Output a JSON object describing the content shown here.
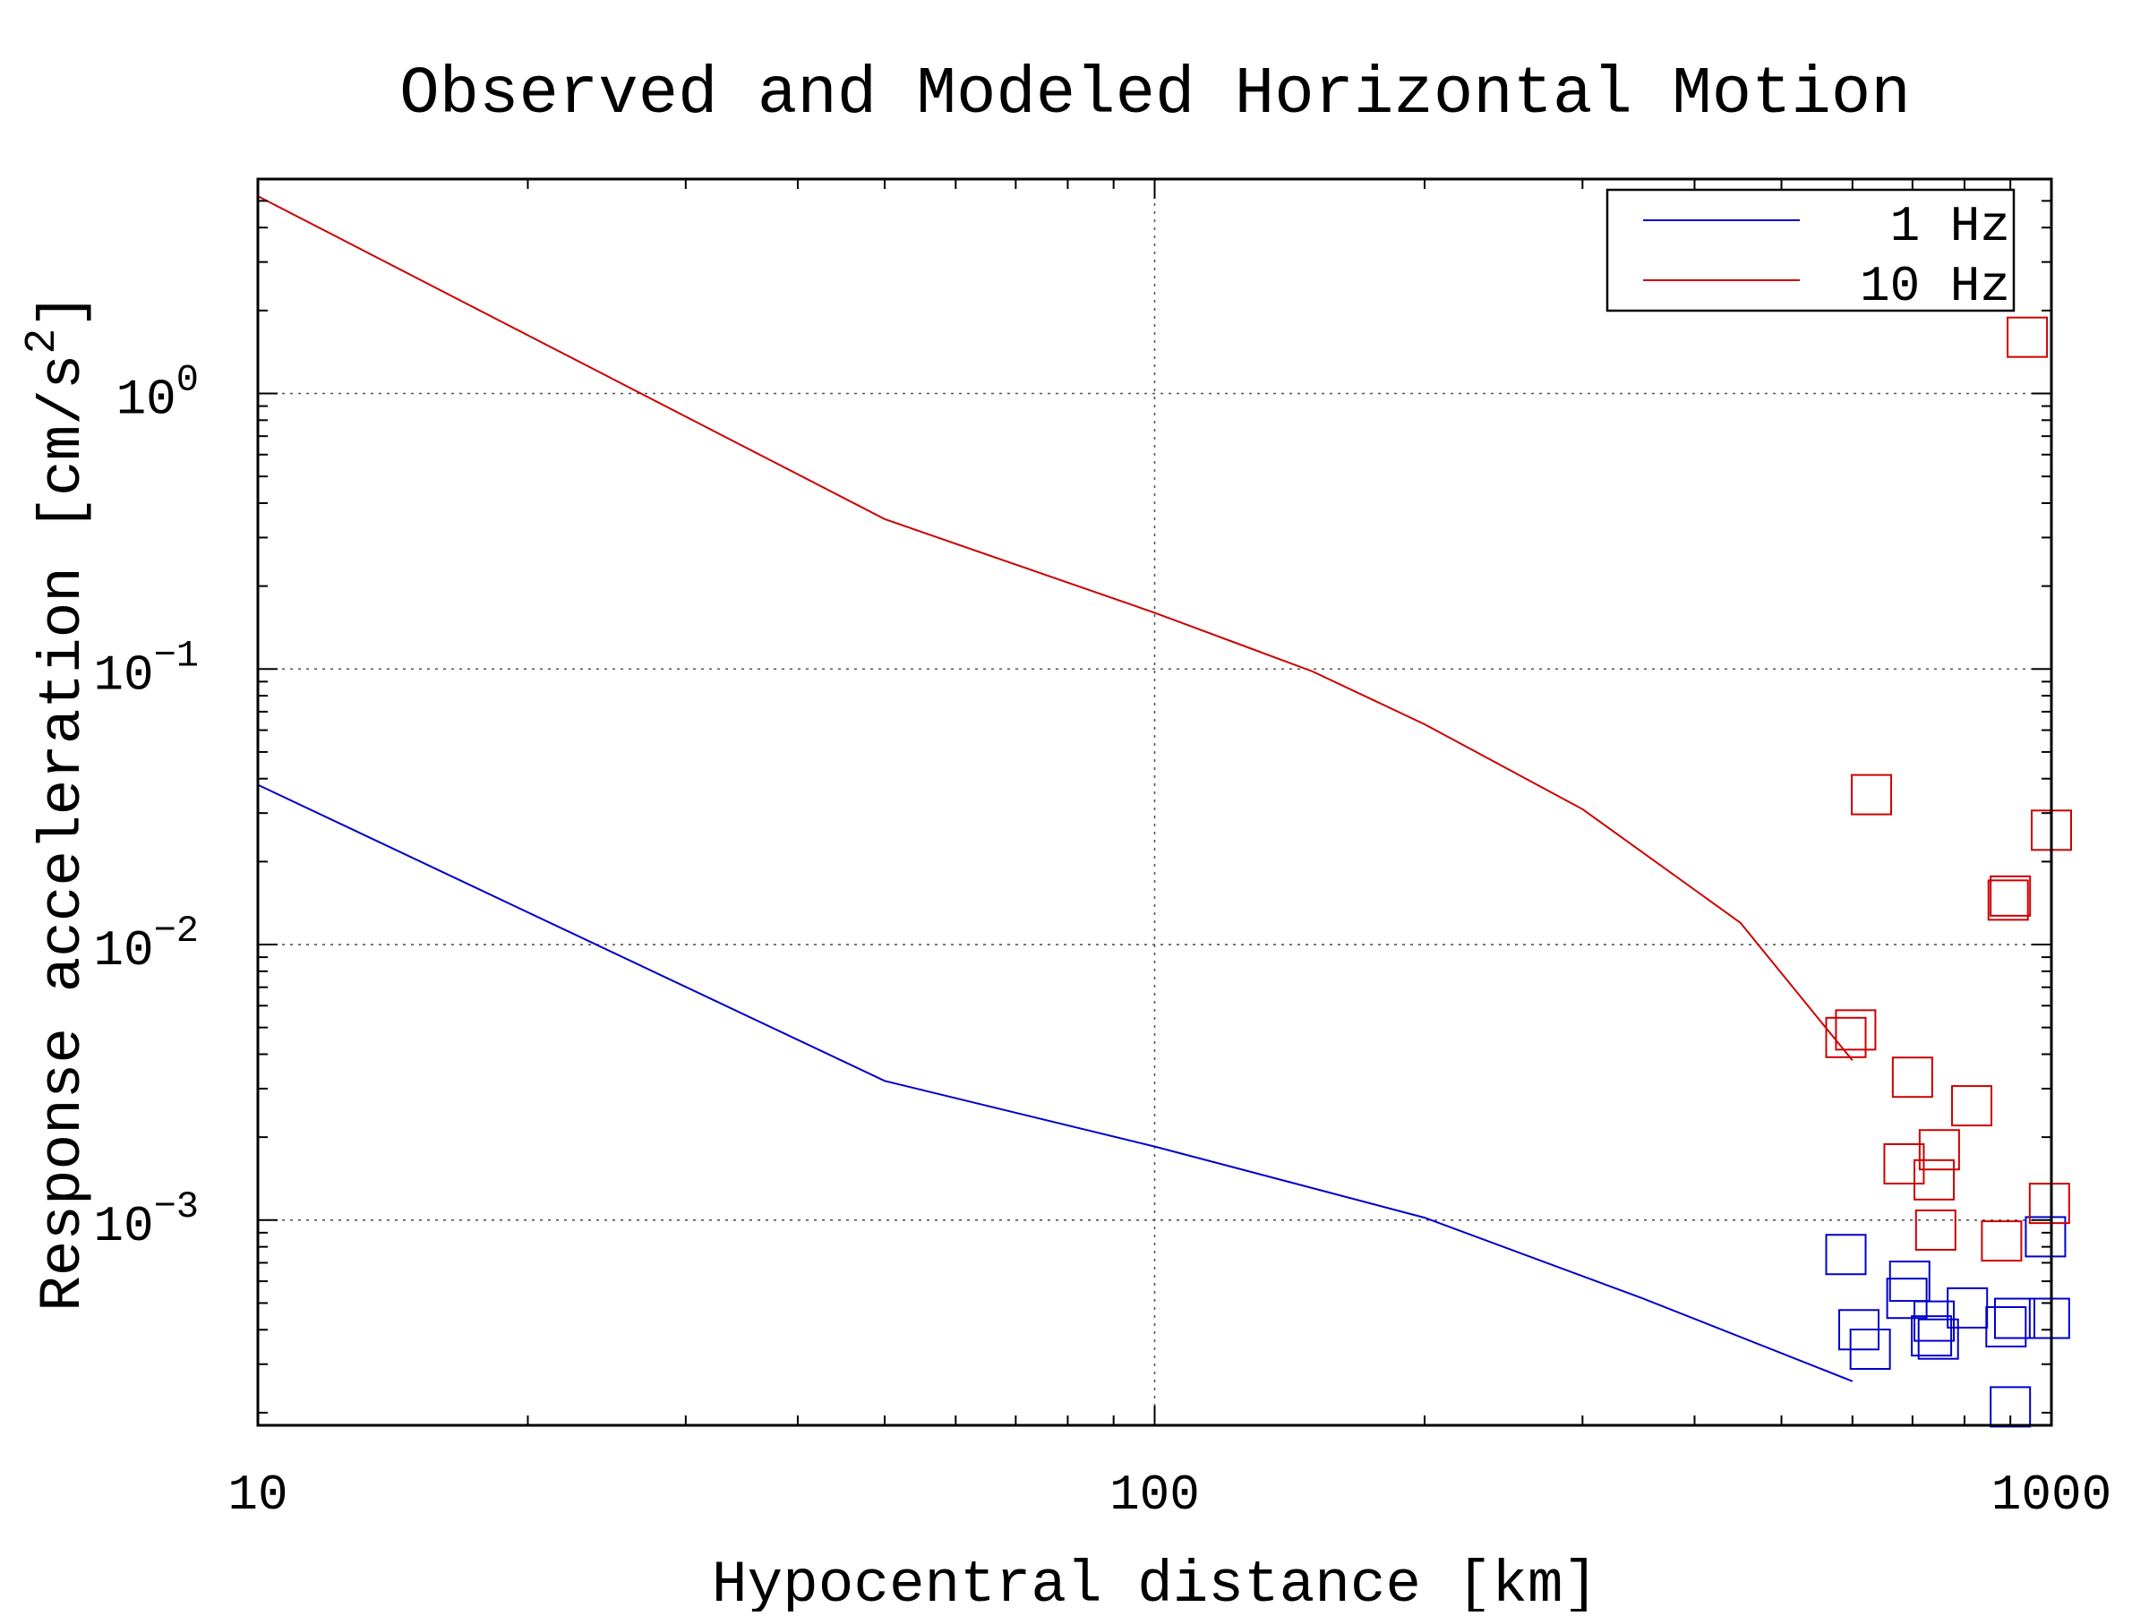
{
  "chart_data": {
    "type": "scatter",
    "title": "Observed and Modeled Horizontal Motion",
    "xlabel": "Hypocentral distance [km]",
    "ylabel_main": "Response acceleration [cm/s",
    "ylabel_exp": "2",
    "ylabel_tail": "]",
    "x_scale": "log",
    "y_scale": "log",
    "xlim": [
      10,
      1000
    ],
    "ylim": [
      0.00018,
      6.0
    ],
    "x_ticks": [
      {
        "value": 10,
        "label": "10"
      },
      {
        "value": 100,
        "label": "100"
      },
      {
        "value": 1000,
        "label": "1000"
      }
    ],
    "y_ticks": [
      {
        "value": 1,
        "base": "10",
        "exp": "0"
      },
      {
        "value": 0.1,
        "base": "10",
        "exp": "−1"
      },
      {
        "value": 0.01,
        "base": "10",
        "exp": "−2"
      },
      {
        "value": 0.001,
        "base": "10",
        "exp": "−3"
      }
    ],
    "grid": true,
    "legend_position": "top-right",
    "series": [
      {
        "name": "1 Hz",
        "color": "#0000cc",
        "line": {
          "x": [
            10,
            50,
            100,
            200,
            350,
            600
          ],
          "y": [
            0.038,
            0.0032,
            0.00185,
            0.00102,
            0.00052,
            0.00026
          ]
        },
        "points": {
          "x": [
            590,
            610,
            628,
            695,
            690,
            740,
            735,
            748,
            806,
            890,
            910,
            985,
            995,
            900
          ],
          "y": [
            0.00075,
            0.0004,
            0.00034,
            0.0006,
            0.00052,
            0.00043,
            0.00038,
            0.00037,
            0.00048,
            0.00041,
            0.00044,
            0.00087,
            0.00044,
            0.00021
          ]
        }
      },
      {
        "name": "10 Hz",
        "color": "#cc0000",
        "line": {
          "x": [
            10,
            50,
            100,
            150,
            200,
            300,
            450,
            600
          ],
          "y": [
            5.2,
            0.35,
            0.16,
            0.098,
            0.063,
            0.031,
            0.012,
            0.0038
          ]
        },
        "points": {
          "x": [
            940,
            630,
            1000,
            895,
            900,
            590,
            605,
            700,
            815,
            750,
            685,
            740,
            743,
            880,
            995
          ],
          "y": [
            1.6,
            0.035,
            0.026,
            0.0145,
            0.015,
            0.0046,
            0.0049,
            0.0033,
            0.0026,
            0.0018,
            0.0016,
            0.0014,
            0.00092,
            0.00084,
            0.00115
          ]
        }
      }
    ]
  }
}
